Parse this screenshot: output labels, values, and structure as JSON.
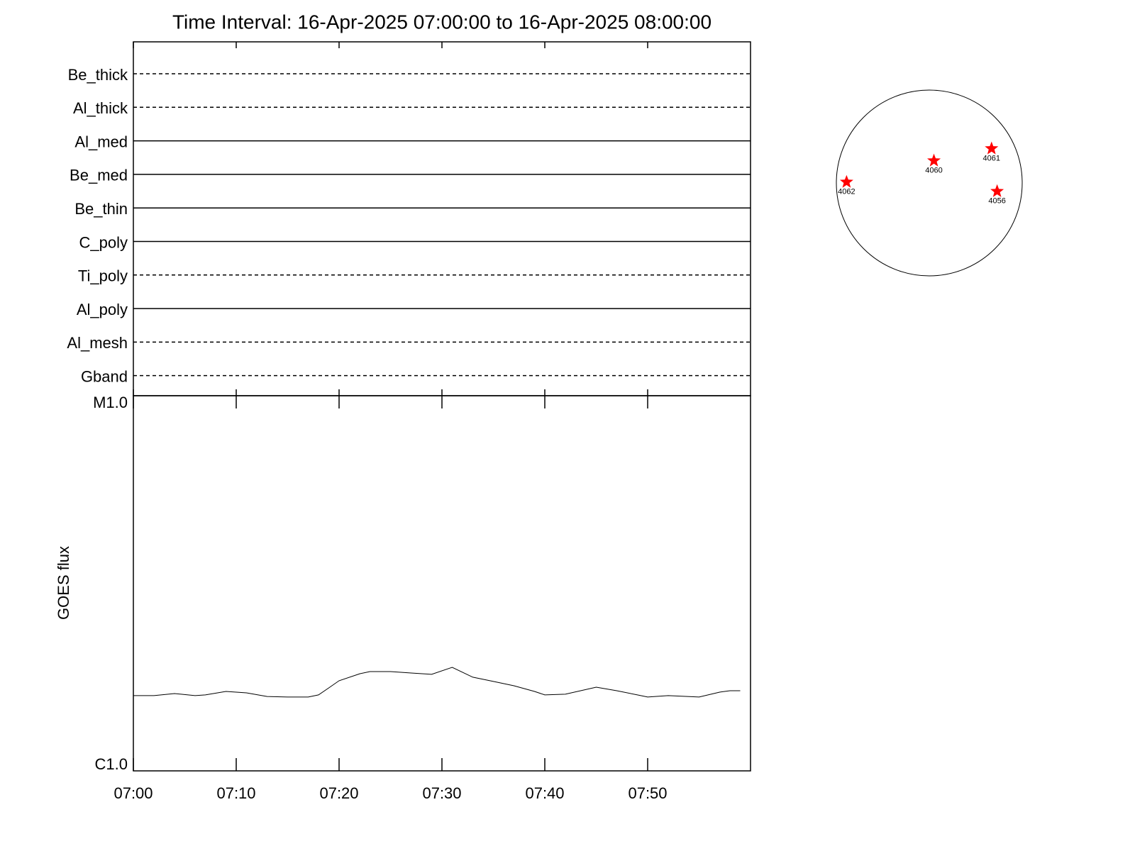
{
  "chart_data": [
    {
      "type": "timeline",
      "title": "Time Interval: 16-Apr-2025 07:00:00 to 16-Apr-2025 08:00:00",
      "categories": [
        "Be_thick",
        "Al_thick",
        "Al_med",
        "Be_med",
        "Be_thin",
        "C_poly",
        "Ti_poly",
        "Al_poly",
        "Al_mesh",
        "Gband"
      ],
      "styles": [
        "dashed",
        "dashed",
        "solid",
        "solid",
        "solid",
        "solid",
        "dashed",
        "solid",
        "dashed",
        "dashed"
      ],
      "color": "#000000"
    },
    {
      "type": "line",
      "y_label": "GOES flux",
      "log_scale": true,
      "color": "#000000",
      "x": [
        "07:00",
        "07:02",
        "07:04",
        "07:06",
        "07:07",
        "07:09",
        "07:11",
        "07:13",
        "07:15",
        "07:17",
        "07:18",
        "07:19",
        "07:20",
        "07:22",
        "07:23",
        "07:25",
        "07:27",
        "07:29",
        "07:31",
        "07:33",
        "07:35",
        "07:37",
        "07:39",
        "07:40",
        "07:42",
        "07:45",
        "07:47",
        "07:49",
        "07:50",
        "07:52",
        "07:55",
        "07:57",
        "07:58",
        "07:59"
      ],
      "values": [
        1.587e-06,
        1.587e-06,
        1.607e-06,
        1.587e-06,
        1.594e-06,
        1.628e-06,
        1.614e-06,
        1.579e-06,
        1.573e-06,
        1.573e-06,
        1.594e-06,
        1.664e-06,
        1.739e-06,
        1.815e-06,
        1.839e-06,
        1.839e-06,
        1.823e-06,
        1.808e-06,
        1.888e-06,
        1.777e-06,
        1.731e-06,
        1.686e-06,
        1.628e-06,
        1.594e-06,
        1.601e-06,
        1.671e-06,
        1.635e-06,
        1.594e-06,
        1.573e-06,
        1.587e-06,
        1.573e-06,
        1.621e-06,
        1.635e-06,
        1.635e-06
      ],
      "xlim": [
        "07:00",
        "08:00"
      ],
      "xticks": [
        "07:00",
        "07:10",
        "07:20",
        "07:30",
        "07:40",
        "07:50"
      ],
      "ylim": [
        1e-06,
        1e-05
      ],
      "yticks": [
        {
          "value": 1e-06,
          "label": "C1.0"
        },
        {
          "value": 1e-05,
          "label": "M1.0"
        }
      ]
    },
    {
      "type": "disk",
      "color": "#ff0000",
      "xlim": [
        -1,
        1
      ],
      "ylim": [
        -1,
        1
      ],
      "points": [
        {
          "label": "4062",
          "x": -0.89,
          "y": 0.01
        },
        {
          "label": "4060",
          "x": 0.05,
          "y": 0.24
        },
        {
          "label": "4061",
          "x": 0.67,
          "y": 0.37
        },
        {
          "label": "4056",
          "x": 0.73,
          "y": -0.09
        }
      ]
    }
  ]
}
